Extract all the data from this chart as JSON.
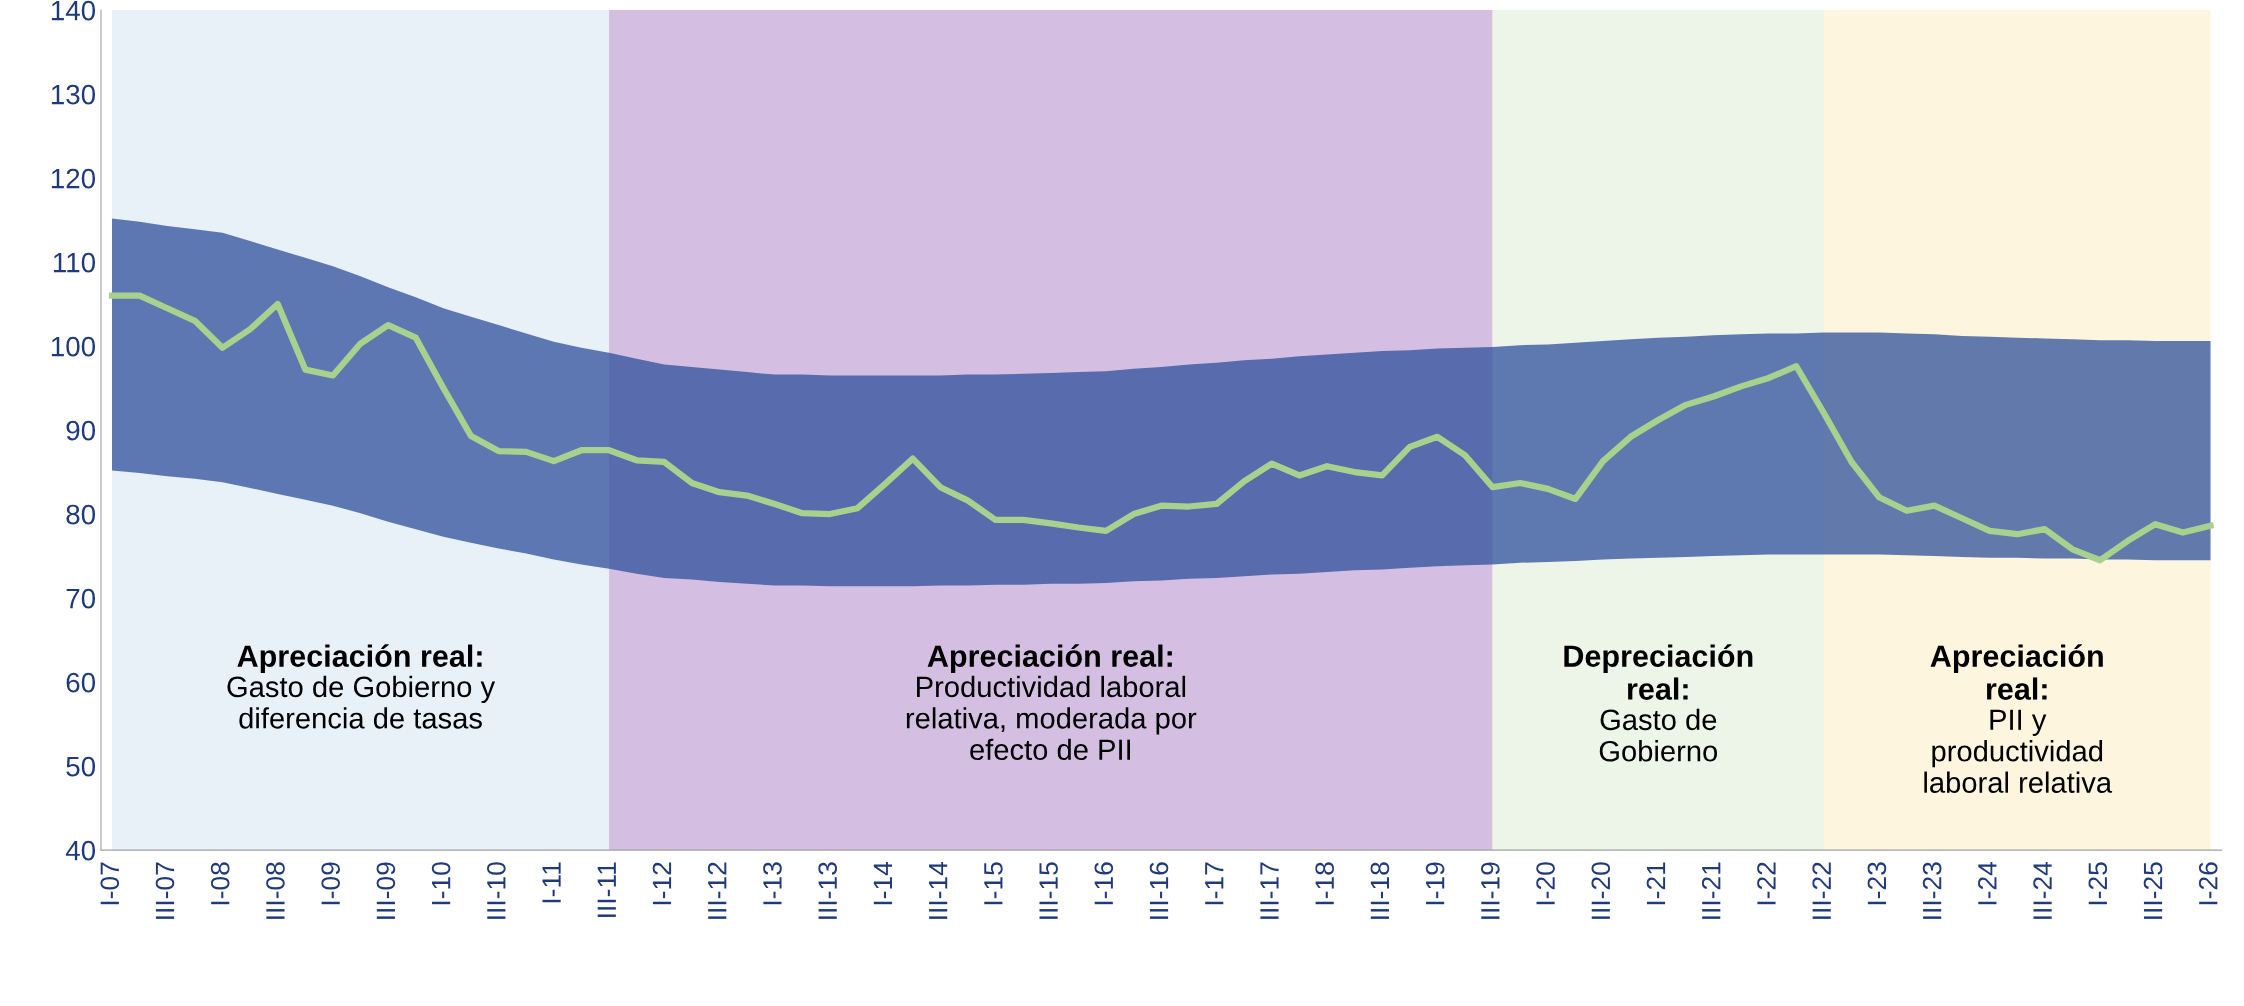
{
  "chart_data": {
    "type": "line",
    "categories": [
      "I-07",
      null,
      "III-07",
      null,
      "I-08",
      null,
      "III-08",
      null,
      "I-09",
      null,
      "III-09",
      null,
      "I-10",
      null,
      "III-10",
      null,
      "I-11",
      null,
      "III-11",
      null,
      "I-12",
      null,
      "III-12",
      null,
      "I-13",
      null,
      "III-13",
      null,
      "I-14",
      null,
      "III-14",
      null,
      "I-15",
      null,
      "III-15",
      null,
      "I-16",
      null,
      "III-16",
      null,
      "I-17",
      null,
      "III-17",
      null,
      "I-18",
      null,
      "III-18",
      null,
      "I-19",
      null,
      "III-19",
      null,
      "I-20",
      null,
      "III-20",
      null,
      "I-21",
      null,
      "III-21",
      null,
      "I-22",
      null,
      "III-22",
      null,
      "I-23",
      null,
      "III-23",
      null,
      "I-24",
      null,
      "III-24",
      null,
      "I-25",
      null,
      "III-25",
      null,
      "I-26"
    ],
    "series": [
      {
        "color": "#a9d18e",
        "values": [
          106,
          106,
          104.5,
          103,
          99.8,
          102,
          105,
          97.2,
          96.5,
          100.3,
          102.5,
          101,
          95,
          89.3,
          87.5,
          87.4,
          86.3,
          87.6,
          87.6,
          86.4,
          86.2,
          83.7,
          82.6,
          82.2,
          81.2,
          80.1,
          80,
          80.7,
          83.6,
          86.6,
          83.2,
          81.6,
          79.3,
          79.3,
          78.9,
          78.4,
          78,
          80,
          81,
          80.9,
          81.2,
          83.9,
          86,
          84.6,
          85.7,
          85,
          84.6,
          88,
          89.2,
          87,
          83.2,
          83.7,
          83,
          81.8,
          86.3,
          89.2,
          91.2,
          93,
          94,
          95.2,
          96.2,
          97.6,
          92,
          86.2,
          82,
          80.4,
          81,
          79.5,
          78,
          77.6,
          78.2,
          75.8,
          74.5,
          76.8,
          78.8,
          77.8,
          78.6
        ],
        "upper": [
          115.2,
          114.8,
          114.3,
          113.9,
          113.5,
          112.5,
          111.5,
          110.5,
          109.5,
          108.3,
          107,
          105.8,
          104.5,
          103.5,
          102.5,
          101.5,
          100.5,
          99.8,
          99.2,
          98.5,
          97.8,
          97.5,
          97.2,
          96.9,
          96.6,
          96.6,
          96.5,
          96.5,
          96.5,
          96.5,
          96.5,
          96.6,
          96.6,
          96.7,
          96.8,
          96.9,
          97,
          97.3,
          97.5,
          97.8,
          98,
          98.3,
          98.5,
          98.8,
          99,
          99.2,
          99.4,
          99.5,
          99.7,
          99.8,
          99.9,
          100.1,
          100.2,
          100.4,
          100.6,
          100.8,
          101,
          101.1,
          101.3,
          101.4,
          101.5,
          101.5,
          101.6,
          101.6,
          101.6,
          101.5,
          101.4,
          101.2,
          101.1,
          101,
          100.9,
          100.8,
          100.7,
          100.7,
          100.6,
          100.6,
          100.6
        ],
        "lower": [
          85.2,
          84.9,
          84.5,
          84.2,
          83.8,
          83.1,
          82.4,
          81.7,
          81,
          80.1,
          79.1,
          78.2,
          77.3,
          76.6,
          75.9,
          75.3,
          74.6,
          74,
          73.5,
          72.9,
          72.4,
          72.2,
          71.9,
          71.7,
          71.5,
          71.5,
          71.4,
          71.4,
          71.4,
          71.4,
          71.5,
          71.5,
          71.6,
          71.6,
          71.7,
          71.7,
          71.8,
          72,
          72.1,
          72.3,
          72.4,
          72.6,
          72.8,
          72.9,
          73.1,
          73.3,
          73.4,
          73.6,
          73.8,
          73.9,
          74,
          74.2,
          74.3,
          74.4,
          74.6,
          74.7,
          74.8,
          74.9,
          75,
          75.1,
          75.2,
          75.2,
          75.2,
          75.2,
          75.2,
          75.1,
          75,
          74.9,
          74.8,
          74.8,
          74.7,
          74.7,
          74.6,
          74.6,
          74.5,
          74.5,
          74.5
        ]
      }
    ],
    "ylim": [
      40,
      140
    ],
    "yticks": [
      40,
      50,
      60,
      70,
      80,
      90,
      100,
      110,
      120,
      130,
      140
    ],
    "grid": false,
    "legend": false,
    "marker": "none",
    "line_style": "solid",
    "bands": [
      {
        "axis": "x",
        "from": "I-07",
        "to": "III-11",
        "color": "#e8f0f8",
        "label": "Apreciación real:\nGasto de Gobierno y\ndiferencia de tasas"
      },
      {
        "axis": "x",
        "from": "III-11",
        "to": "III-19",
        "color": "#d4bfe2",
        "label": "Apreciación real:\nProductividad laboral\nrelativa, moderada por\nefecto de PII"
      },
      {
        "axis": "x",
        "from": "III-19",
        "to": "III-22",
        "color": "#edf5e9",
        "label": "Depreciación\nreal:\nGasto de\nGobierno"
      },
      {
        "axis": "x",
        "from": "III-22",
        "to": "I-26",
        "color": "#fdf5de",
        "label": "Apreciación\nreal:\nPII y\nproductividad\nlaboral relativa"
      }
    ]
  }
}
